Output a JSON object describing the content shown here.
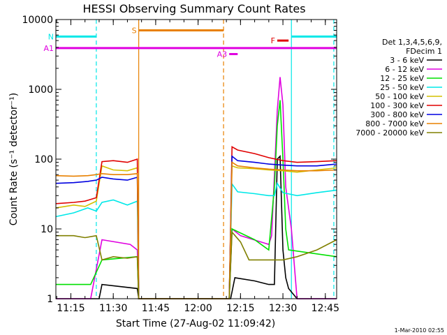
{
  "chart_data": {
    "type": "line",
    "title": "HESSI Observing Summary Count Rates",
    "xlabel": "Start Time (27-Aug-02 11:09:42)",
    "ylabel": "Count Rate (s⁻¹ detector⁻¹)",
    "yscale": "log",
    "xlim": [
      "11:09:42",
      "12:49:00"
    ],
    "ylim": [
      1,
      10000
    ],
    "x_ticks": [
      "11:15",
      "11:30",
      "11:45",
      "12:00",
      "12:15",
      "12:30",
      "12:45"
    ],
    "y_ticks": [
      "1",
      "10",
      "100",
      "1000",
      "10000"
    ],
    "legend": {
      "placement": "right",
      "header": [
        "Det 1,3,4,5,6,9,",
        "FDecim 1"
      ],
      "entries": [
        {
          "label": "3 - 6 keV",
          "color": "#000000"
        },
        {
          "label": "6 - 12 keV",
          "color": "#e000e0"
        },
        {
          "label": "12 - 25 keV",
          "color": "#00e000"
        },
        {
          "label": "25 - 50 keV",
          "color": "#00e8e8"
        },
        {
          "label": "50 - 100 keV",
          "color": "#d4c000"
        },
        {
          "label": "100 - 300 keV",
          "color": "#e00000"
        },
        {
          "label": "300 - 800 keV",
          "color": "#0000e0"
        },
        {
          "label": "800 - 7000 keV",
          "color": "#e88000"
        },
        {
          "label": "7000 - 20000 keV",
          "color": "#808000"
        }
      ]
    },
    "series": [
      {
        "name": "3 - 6 keV",
        "color": "#000000",
        "x": [
          "11:09:42",
          "11:25:00",
          "11:26:00",
          "11:38:30",
          "11:39:00",
          "12:11:30",
          "12:13:00",
          "12:20:00",
          "12:25:00",
          "12:27:00",
          "12:28:00",
          "12:29:00",
          "12:30:00",
          "12:31:00",
          "12:32:00",
          "12:35:00",
          "12:49:00"
        ],
        "y": [
          1,
          1,
          1.6,
          1.4,
          1,
          1,
          2,
          1.8,
          1.6,
          1.6,
          100,
          110,
          5,
          2,
          1.4,
          1,
          1
        ]
      },
      {
        "name": "6 - 12 keV",
        "color": "#e000e0",
        "x": [
          "11:09:42",
          "11:22:00",
          "11:26:00",
          "11:36:00",
          "11:38:30",
          "11:39:00",
          "12:11:00",
          "12:12:00",
          "12:15:00",
          "12:25:00",
          "12:26:00",
          "12:27:00",
          "12:28:00",
          "12:29:00",
          "12:30:00",
          "12:31:00",
          "12:33:00",
          "12:35:00",
          "12:49:00"
        ],
        "y": [
          1,
          1,
          7,
          6,
          5,
          1,
          1,
          10,
          8,
          6,
          8,
          60,
          500,
          1500,
          600,
          40,
          10,
          1,
          1
        ]
      },
      {
        "name": "12 - 25 keV",
        "color": "#00e000",
        "x": [
          "11:09:42",
          "11:16:00",
          "11:22:00",
          "11:26:00",
          "11:38:30",
          "11:39:00",
          "12:11:00",
          "12:12:00",
          "12:20:00",
          "12:25:00",
          "12:27:00",
          "12:28:00",
          "12:29:00",
          "12:30:00",
          "12:31:00",
          "12:32:00",
          "12:49:00"
        ],
        "y": [
          1.6,
          1.6,
          1.6,
          3.6,
          4,
          1,
          1,
          10,
          7,
          5,
          40,
          300,
          700,
          100,
          10,
          5,
          4
        ]
      },
      {
        "name": "25 - 50 keV",
        "color": "#00e8e8",
        "x": [
          "11:09:42",
          "11:16:00",
          "11:21:00",
          "11:24:00",
          "11:26:00",
          "11:30:00",
          "11:35:00",
          "11:38:30",
          "11:39:00",
          "12:11:00",
          "12:12:00",
          "12:14:00",
          "12:20:00",
          "12:25:00",
          "12:27:00",
          "12:28:00",
          "12:30:00",
          "12:35:00",
          "12:42:00",
          "12:49:00"
        ],
        "y": [
          15,
          17,
          20,
          18,
          24,
          26,
          22,
          25,
          1,
          1,
          44,
          34,
          32,
          30,
          30,
          45,
          33,
          30,
          33,
          36
        ]
      },
      {
        "name": "50 - 100 keV",
        "color": "#d4c000",
        "x": [
          "11:09:42",
          "11:16:00",
          "11:20:00",
          "11:24:00",
          "11:26:00",
          "11:30:00",
          "11:35:00",
          "11:38:30",
          "11:39:00",
          "12:11:00",
          "12:12:00",
          "12:14:00",
          "12:20:00",
          "12:25:00",
          "12:30:00",
          "12:35:00",
          "12:42:00",
          "12:49:00"
        ],
        "y": [
          20,
          22,
          21,
          25,
          80,
          70,
          68,
          75,
          1,
          1,
          80,
          75,
          73,
          70,
          68,
          65,
          70,
          75
        ]
      },
      {
        "name": "100 - 300 keV",
        "color": "#e00000",
        "x": [
          "11:09:42",
          "11:16:00",
          "11:20:00",
          "11:24:00",
          "11:26:00",
          "11:30:00",
          "11:35:00",
          "11:38:30",
          "11:39:00",
          "12:11:00",
          "12:12:00",
          "12:14:00",
          "12:20:00",
          "12:25:00",
          "12:30:00",
          "12:35:00",
          "12:42:00",
          "12:49:00"
        ],
        "y": [
          23,
          24,
          25,
          28,
          92,
          95,
          90,
          100,
          1,
          1,
          150,
          135,
          120,
          105,
          95,
          90,
          92,
          95
        ]
      },
      {
        "name": "300 - 800 keV",
        "color": "#0000e0",
        "x": [
          "11:09:42",
          "11:16:00",
          "11:21:00",
          "11:24:00",
          "11:26:00",
          "11:30:00",
          "11:35:00",
          "11:38:30",
          "11:39:00",
          "12:11:00",
          "12:12:00",
          "12:14:00",
          "12:20:00",
          "12:25:00",
          "12:30:00",
          "12:35:00",
          "12:42:00",
          "12:49:00"
        ],
        "y": [
          45,
          46,
          48,
          50,
          55,
          52,
          50,
          55,
          1,
          1,
          110,
          95,
          90,
          85,
          82,
          80,
          80,
          85
        ]
      },
      {
        "name": "800 - 7000 keV",
        "color": "#e88000",
        "x": [
          "11:09:42",
          "11:16:00",
          "11:21:00",
          "11:24:00",
          "11:26:00",
          "11:30:00",
          "11:35:00",
          "11:38:30",
          "11:39:00",
          "12:11:00",
          "12:12:00",
          "12:14:00",
          "12:20:00",
          "12:25:00",
          "12:30:00",
          "12:35:00",
          "12:42:00",
          "12:49:00"
        ],
        "y": [
          58,
          57,
          58,
          60,
          62,
          60,
          60,
          62,
          1,
          1,
          90,
          80,
          75,
          72,
          70,
          68,
          68,
          70
        ]
      },
      {
        "name": "7000 - 20000 keV",
        "color": "#808000",
        "x": [
          "11:09:42",
          "11:16:00",
          "11:20:00",
          "11:24:00",
          "11:26:00",
          "11:30:00",
          "11:35:00",
          "11:38:30",
          "11:39:00",
          "12:11:00",
          "12:12:00",
          "12:15:00",
          "12:18:00",
          "12:22:00",
          "12:30:00",
          "12:35:00",
          "12:42:00",
          "12:49:00"
        ],
        "y": [
          8,
          8,
          7.5,
          8,
          3.6,
          4,
          3.8,
          4,
          1,
          1,
          9,
          6.5,
          3.6,
          3.6,
          3.6,
          4,
          5,
          7
        ]
      }
    ],
    "flag_bars": [
      {
        "label": "N",
        "color": "#00e8e8",
        "y": 5700,
        "spans": [
          [
            "11:09:42",
            "11:24:00"
          ],
          [
            "12:33:00",
            "12:49:00"
          ]
        ]
      },
      {
        "label": "S",
        "color": "#e88000",
        "y": 7000,
        "spans": [
          [
            "11:39:00",
            "12:09:00"
          ]
        ]
      },
      {
        "label": "A1",
        "color": "#e000e0",
        "y": 3900,
        "spans": [
          [
            "11:09:42",
            "12:49:00"
          ]
        ]
      },
      {
        "label": "A3",
        "color": "#e000e0",
        "y": 3200,
        "spans": [
          [
            "12:11:00",
            "12:14:00"
          ]
        ]
      },
      {
        "label": "F",
        "color": "#e00000",
        "y": 5000,
        "spans": [
          [
            "12:28:00",
            "12:32:00"
          ]
        ]
      }
    ],
    "vertical_markers": [
      {
        "x": "11:24:00",
        "color": "#00e8e8",
        "style": "dashed"
      },
      {
        "x": "11:39:00",
        "color": "#e88000",
        "style": "solid"
      },
      {
        "x": "12:09:00",
        "color": "#e88000",
        "style": "dashed"
      },
      {
        "x": "12:33:00",
        "color": "#00e8e8",
        "style": "solid"
      },
      {
        "x": "12:48:00",
        "color": "#00e8e8",
        "style": "dashed"
      }
    ],
    "grid": false,
    "timestamp": "1-Mar-2010 02:55"
  }
}
